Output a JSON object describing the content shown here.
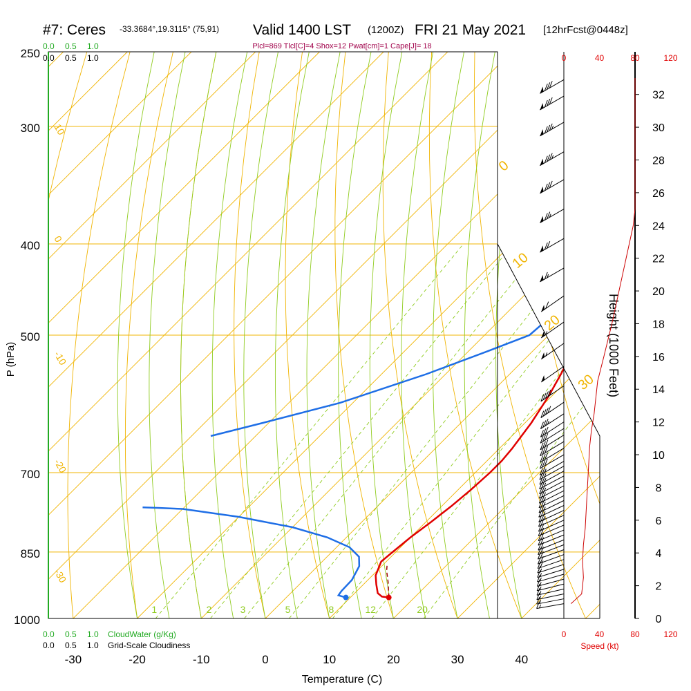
{
  "chart_data": {
    "type": "line",
    "title": {
      "station": "#7: Ceres",
      "coords": "-33.3684°,19.3115° (75,91)",
      "valid": "Valid 1400 LST",
      "zulu": "(1200Z)",
      "date": "FRI 21 May 2021",
      "fcst": "[12hrFcst@0448z]"
    },
    "subtitle": "Plcl=869 Tlcl[C]=4 Shox=12 Pwat[cm]=1 Cape[J]= 18",
    "xlabel": "Temperature (C)",
    "ylabel": "P (hPa)",
    "y2label": "Height (1000 Feet)",
    "xlim": [
      -37,
      37
    ],
    "ylim": [
      1000,
      250
    ],
    "x_ticks": [
      "-30",
      "-20",
      "-10",
      "0",
      "10",
      "20",
      "30",
      "40"
    ],
    "x_tick_values": [
      -30,
      -20,
      -10,
      0,
      10,
      20,
      30,
      40
    ],
    "p_ticks": [
      "250",
      "300",
      "400",
      "500",
      "700",
      "850",
      "1000"
    ],
    "p_tick_values": [
      250,
      300,
      400,
      500,
      700,
      850,
      1000
    ],
    "height_ticks": [
      "0",
      "2",
      "4",
      "6",
      "8",
      "10",
      "12",
      "14",
      "16",
      "18",
      "20",
      "22",
      "24",
      "26",
      "28",
      "30",
      "32"
    ],
    "height_tick_values": [
      0,
      2,
      4,
      6,
      8,
      10,
      12,
      14,
      16,
      18,
      20,
      22,
      24,
      26,
      28,
      30,
      32
    ],
    "speed_ticks_top": [
      "0",
      "40",
      "80",
      "120"
    ],
    "speed_ticks_bottom": [
      "0",
      "40",
      "80",
      "120"
    ],
    "speed_label": "Speed (kt)",
    "cloud_scale_labels": [
      "0.0",
      "0.5",
      "1.0"
    ],
    "cloud_scale_labels_top": [
      "0.0",
      "0.5",
      "1.0"
    ],
    "cloudiness_scale_labels": [
      "0.0",
      "0.5",
      "1.0"
    ],
    "cloudwater_label": "CloudWater (g/Kg)",
    "cloudiness_label": "Grid-Scale Cloudiness",
    "dry_adiabat_labels": [
      "10",
      "0",
      "-10",
      "-20",
      "-30"
    ],
    "isotherm_labels": [
      "0",
      "10",
      "20",
      "30"
    ],
    "mixing_ratio_labels": [
      "1",
      "2",
      "3",
      "5",
      "8",
      "12",
      "20"
    ],
    "mixing_ratio_values": [
      1,
      2,
      3,
      5,
      8,
      12,
      20
    ],
    "series": [
      {
        "name": "temperature",
        "color": "#e00000",
        "points": [
          [
            16.0,
            950
          ],
          [
            14.8,
            948
          ],
          [
            13.6,
            940
          ],
          [
            12.0,
            920
          ],
          [
            10.5,
            900
          ],
          [
            9.2,
            870
          ],
          [
            9.5,
            850
          ],
          [
            10.0,
            820
          ],
          [
            10.8,
            790
          ],
          [
            11.5,
            760
          ],
          [
            12.0,
            730
          ],
          [
            12.3,
            700
          ],
          [
            12.3,
            680
          ],
          [
            12.0,
            660
          ],
          [
            11.0,
            620
          ],
          [
            9.5,
            580
          ],
          [
            8.0,
            550
          ],
          [
            6.0,
            515
          ],
          [
            4.0,
            475
          ],
          [
            2.0,
            440
          ],
          [
            0.5,
            410
          ],
          [
            -1.5,
            385
          ],
          [
            -3.5,
            360
          ],
          [
            -6.5,
            335
          ],
          [
            -9.5,
            310
          ],
          [
            -12.5,
            285
          ],
          [
            -15.0,
            266
          ],
          [
            -17.5,
            260
          ]
        ]
      },
      {
        "name": "dewpoint",
        "color": "#1e6ee6",
        "points": [
          [
            9.3,
            950
          ],
          [
            7.8,
            945
          ],
          [
            7.6,
            935
          ],
          [
            7.5,
            910
          ],
          [
            6.5,
            880
          ],
          [
            5.0,
            860
          ],
          [
            2.0,
            840
          ],
          [
            -3.0,
            820
          ],
          [
            -10.0,
            800
          ],
          [
            -20.0,
            780
          ],
          [
            -30.0,
            765
          ],
          [
            -34.0,
            763
          ],
          [
            -36.5,
            762
          ]
        ]
      },
      {
        "name": "dewpoint-upper",
        "color": "#1e6ee6",
        "points": [
          [
            -37.0,
            640
          ],
          [
            -31.0,
            620
          ],
          [
            -22.0,
            590
          ],
          [
            -13.0,
            550
          ],
          [
            -7.0,
            520
          ],
          [
            -3.0,
            500
          ],
          [
            -2.5,
            475
          ],
          [
            -2.0,
            455
          ],
          [
            -5.0,
            430
          ],
          [
            -9.0,
            400
          ],
          [
            -14.5,
            370
          ],
          [
            -16.5,
            350
          ],
          [
            -17.0,
            340
          ],
          [
            -15.5,
            320
          ],
          [
            -14.5,
            300
          ],
          [
            -14.0,
            290
          ],
          [
            -14.5,
            280
          ],
          [
            -15.5,
            266
          ],
          [
            -15.5,
            260
          ]
        ]
      },
      {
        "name": "parcel",
        "color": "#a00000",
        "points": [
          [
            16.0,
            950
          ],
          [
            13.5,
            915
          ],
          [
            11.5,
            890
          ],
          [
            10.5,
            875
          ]
        ]
      }
    ],
    "surface_points": [
      {
        "name": "surface-temperature",
        "t": 16.0,
        "p": 950,
        "color": "#e00000"
      },
      {
        "name": "surface-dewpoint",
        "t": 9.3,
        "p": 950,
        "color": "#1e6ee6"
      }
    ],
    "wind_speed_profile": {
      "xlim": [
        0,
        120
      ],
      "height_kft": [
        0.9,
        1.1,
        1.5,
        2.5,
        3.5,
        4.5,
        5.5,
        6.5,
        7.5,
        8.5,
        9.5,
        10.5,
        11.5,
        12.5,
        13.5,
        14.5,
        16,
        18,
        20,
        22,
        24,
        25,
        26,
        28,
        30,
        32,
        33
      ],
      "speed_kt": [
        8,
        12,
        20,
        22,
        21,
        22,
        24,
        25,
        26,
        27,
        28,
        29,
        31,
        34,
        36,
        38,
        45,
        54,
        62,
        70,
        78,
        80,
        80,
        80,
        80,
        80,
        80
      ]
    },
    "wind_barbs": {
      "height_kft": [
        0.9,
        1.2,
        1.5,
        1.8,
        2.1,
        2.4,
        2.7,
        3.0,
        3.3,
        3.6,
        3.9,
        4.2,
        4.5,
        4.8,
        5.1,
        5.4,
        5.7,
        6.0,
        6.3,
        6.6,
        6.9,
        7.2,
        7.5,
        7.8,
        8.1,
        8.4,
        8.7,
        9.0,
        9.3,
        9.6,
        10.0,
        10.4,
        10.8,
        11.2,
        11.6,
        12.0,
        12.5,
        13.2,
        14.2,
        15.4,
        16.8,
        18.1,
        19.7,
        21.4,
        23.2,
        25.0,
        26.8,
        28.5,
        30.3,
        31.9,
        32.9
      ],
      "speed_kt": [
        15,
        15,
        16,
        16,
        17,
        18,
        18,
        19,
        19,
        20,
        20,
        21,
        21,
        22,
        22,
        23,
        23,
        24,
        24,
        25,
        25,
        25,
        26,
        26,
        27,
        27,
        28,
        28,
        29,
        29,
        30,
        30,
        31,
        32,
        33,
        34,
        36,
        40,
        45,
        50,
        55,
        55,
        60,
        65,
        70,
        75,
        80,
        85,
        85,
        80,
        80
      ],
      "direction_deg": [
        280,
        281,
        282,
        283,
        284,
        285,
        286,
        287,
        288,
        289,
        290,
        290,
        291,
        292,
        292,
        293,
        293,
        294,
        294,
        295,
        295,
        296,
        296,
        297,
        297,
        298,
        298,
        299,
        299,
        300,
        300,
        301,
        301,
        302,
        302,
        303,
        303,
        304,
        304,
        305,
        305,
        305,
        305,
        300,
        300,
        300,
        300,
        300,
        300,
        300,
        300
      ]
    },
    "grid": true,
    "legend": "none"
  }
}
